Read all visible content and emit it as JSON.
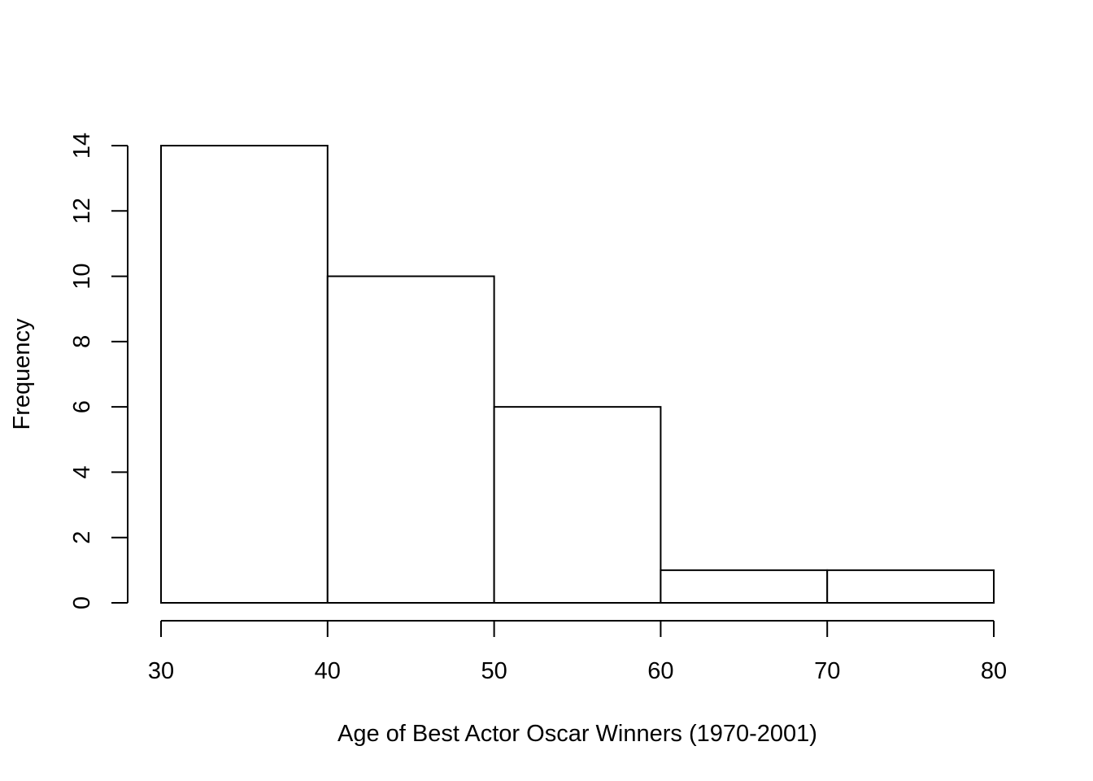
{
  "chart_data": {
    "type": "bar",
    "histogram": true,
    "bins": [
      {
        "start": 30,
        "end": 40,
        "count": 14
      },
      {
        "start": 40,
        "end": 50,
        "count": 10
      },
      {
        "start": 50,
        "end": 60,
        "count": 6
      },
      {
        "start": 60,
        "end": 70,
        "count": 1
      },
      {
        "start": 70,
        "end": 80,
        "count": 1
      }
    ],
    "title": "",
    "xlabel": "Age of Best Actor Oscar Winners (1970-2001)",
    "ylabel": "Frequency",
    "xlim": [
      30,
      80
    ],
    "ylim": [
      0,
      14
    ],
    "x_ticks": [
      30,
      40,
      50,
      60,
      70,
      80
    ],
    "y_ticks": [
      0,
      2,
      4,
      6,
      8,
      10,
      12,
      14
    ],
    "grid": false,
    "legend": "none",
    "bar_fill": "#ffffff",
    "bar_stroke": "#000000"
  }
}
